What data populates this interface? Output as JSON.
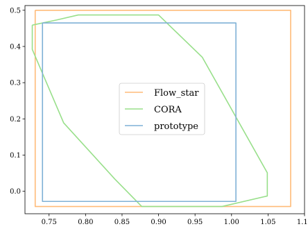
{
  "chart_data": {
    "type": "line",
    "title": "",
    "xlabel": "",
    "ylabel": "",
    "xlim": [
      0.717,
      1.1
    ],
    "ylim": [
      -0.062,
      0.513
    ],
    "x_ticks": [
      0.75,
      0.8,
      0.85,
      0.9,
      0.95,
      1.0,
      1.05,
      1.1
    ],
    "x_tick_labels": [
      "0.75",
      "0.80",
      "0.85",
      "0.90",
      "0.95",
      "1.00",
      "1.05",
      "1.10"
    ],
    "y_ticks": [
      0.0,
      0.1,
      0.2,
      0.3,
      0.4,
      0.5
    ],
    "y_tick_labels": [
      "0.0",
      "0.1",
      "0.2",
      "0.3",
      "0.4",
      "0.5"
    ],
    "grid": false,
    "legend_position": "center",
    "series": [
      {
        "name": "Flow_star",
        "color": "#ffbb78",
        "points": [
          [
            0.731,
            0.5
          ],
          [
            1.081,
            0.5
          ],
          [
            1.081,
            -0.042
          ],
          [
            0.731,
            -0.042
          ],
          [
            0.731,
            0.5
          ]
        ]
      },
      {
        "name": "CORA",
        "color": "#98df8a",
        "points": [
          [
            0.727,
            0.459
          ],
          [
            0.76,
            0.473
          ],
          [
            0.79,
            0.487
          ],
          [
            0.9,
            0.487
          ],
          [
            0.96,
            0.37
          ],
          [
            1.049,
            0.051
          ],
          [
            1.049,
            -0.013
          ],
          [
            0.987,
            -0.042
          ],
          [
            0.877,
            -0.042
          ],
          [
            0.84,
            0.034
          ],
          [
            0.77,
            0.189
          ],
          [
            0.727,
            0.392
          ],
          [
            0.727,
            0.459
          ]
        ]
      },
      {
        "name": "prototype",
        "color": "#7fb1d6",
        "points": [
          [
            0.741,
            0.465
          ],
          [
            1.006,
            0.465
          ],
          [
            1.006,
            -0.028
          ],
          [
            0.741,
            -0.028
          ],
          [
            0.741,
            0.465
          ]
        ]
      }
    ]
  }
}
